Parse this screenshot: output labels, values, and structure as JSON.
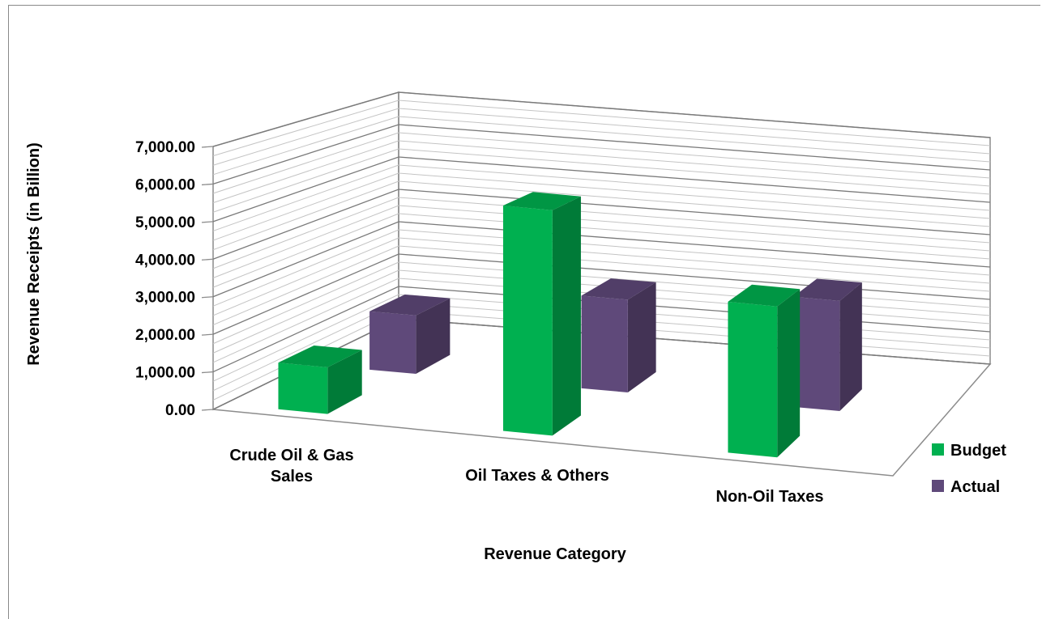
{
  "chart_data": {
    "type": "bar",
    "title": "",
    "xlabel": "Revenue Category",
    "ylabel": "Revenue Receipts (in Billion)",
    "categories": [
      "Crude Oil & Gas\nSales",
      "Oil Taxes & Others",
      "Non-Oil Taxes"
    ],
    "series": [
      {
        "name": "Budget",
        "color": "#00b050",
        "values": [
          1250,
          6050,
          4050
        ]
      },
      {
        "name": "Actual",
        "color": "#5f497a",
        "values": [
          1670,
          2650,
          3150
        ]
      }
    ],
    "ylim": [
      0,
      7000
    ],
    "yticks": [
      "0.00",
      "1,000.00",
      "2,000.00",
      "3,000.00",
      "4,000.00",
      "5,000.00",
      "6,000.00",
      "7,000.00"
    ],
    "grid": true,
    "legend_position": "right",
    "style": "3d-column"
  }
}
